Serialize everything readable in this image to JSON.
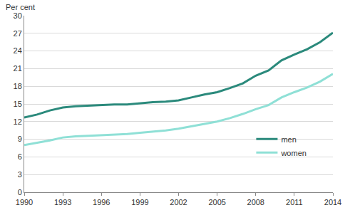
{
  "chart_data": {
    "type": "line",
    "ylabel": "Per cent",
    "x": [
      1990,
      1991,
      1992,
      1993,
      1994,
      1995,
      1996,
      1997,
      1998,
      1999,
      2000,
      2001,
      2002,
      2003,
      2004,
      2005,
      2006,
      2007,
      2008,
      2009,
      2010,
      2011,
      2012,
      2013,
      2014
    ],
    "series": [
      {
        "name": "men",
        "color": "#2b8a7c",
        "values": [
          12.7,
          13.2,
          13.9,
          14.4,
          14.6,
          14.7,
          14.8,
          14.9,
          14.9,
          15.1,
          15.3,
          15.4,
          15.6,
          16.1,
          16.6,
          17.0,
          17.7,
          18.5,
          19.8,
          20.7,
          22.4,
          23.4,
          24.3,
          25.5,
          27.1
        ]
      },
      {
        "name": "women",
        "color": "#8fe0d6",
        "values": [
          8.0,
          8.4,
          8.8,
          9.3,
          9.5,
          9.6,
          9.7,
          9.8,
          9.9,
          10.1,
          10.3,
          10.5,
          10.8,
          11.2,
          11.6,
          12.0,
          12.6,
          13.3,
          14.1,
          14.8,
          16.1,
          17.0,
          17.8,
          18.8,
          20.1
        ]
      }
    ],
    "xlim": [
      1990,
      2014
    ],
    "xticks": [
      1990,
      1993,
      1996,
      1999,
      2002,
      2005,
      2008,
      2011,
      2014
    ],
    "ylim": [
      0,
      30
    ],
    "yticks": [
      0,
      3,
      6,
      9,
      12,
      15,
      18,
      21,
      24,
      27,
      30
    ],
    "grid": true,
    "legend": "lower right"
  }
}
